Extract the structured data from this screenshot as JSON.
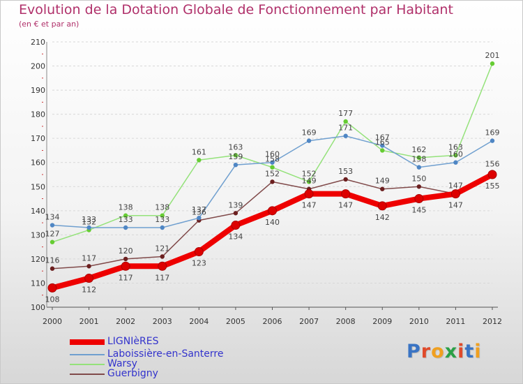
{
  "title": "Evolution de la Dotation Globale de Fonctionnement par Habitant",
  "subtitle": "(en € et par an)",
  "logo": {
    "text": "Proxiti",
    "colors": [
      "#3a74c4",
      "#e04a2a",
      "#f0a020",
      "#2aa046",
      "#e04a2a",
      "#3a74c4",
      "#f0a020"
    ]
  },
  "chart_data": {
    "type": "line",
    "title": "Evolution de la Dotation Globale de Fonctionnement par Habitant",
    "subtitle": "(en € et par an)",
    "xlabel": "",
    "ylabel": "",
    "ylim": [
      100,
      210
    ],
    "yticks": [
      100,
      110,
      120,
      130,
      140,
      150,
      160,
      170,
      180,
      190,
      200,
      210
    ],
    "categories": [
      "2000",
      "2001",
      "2002",
      "2003",
      "2004",
      "2005",
      "2006",
      "2007",
      "2008",
      "2009",
      "2010",
      "2011",
      "2012"
    ],
    "grid": "horizontal dashed",
    "legend_position": "bottom-left",
    "series": [
      {
        "name": "LIGNIèRES",
        "color": "#ee0000",
        "marker": "#dd0000",
        "width": 8,
        "values": [
          108,
          112,
          117,
          117,
          123,
          134,
          140,
          147,
          147,
          142,
          145,
          147,
          155
        ]
      },
      {
        "name": "Laboissière-en-Santerre",
        "color": "#6f9fcf",
        "marker": "#4f86c4",
        "width": 1.5,
        "values": [
          134,
          133,
          133,
          133,
          137,
          159,
          160,
          169,
          171,
          167,
          158,
          160,
          169
        ]
      },
      {
        "name": "Warsy",
        "color": "#94e27a",
        "marker": "#66cc33",
        "width": 1.5,
        "values": [
          127,
          132,
          138,
          138,
          161,
          163,
          158,
          152,
          177,
          165,
          162,
          163,
          201
        ]
      },
      {
        "name": "Guerbigny",
        "color": "#804a4a",
        "marker": "#6b1f1f",
        "width": 1.5,
        "values": [
          116,
          117,
          120,
          121,
          136,
          139,
          152,
          149,
          153,
          149,
          150,
          147,
          156
        ]
      }
    ]
  }
}
